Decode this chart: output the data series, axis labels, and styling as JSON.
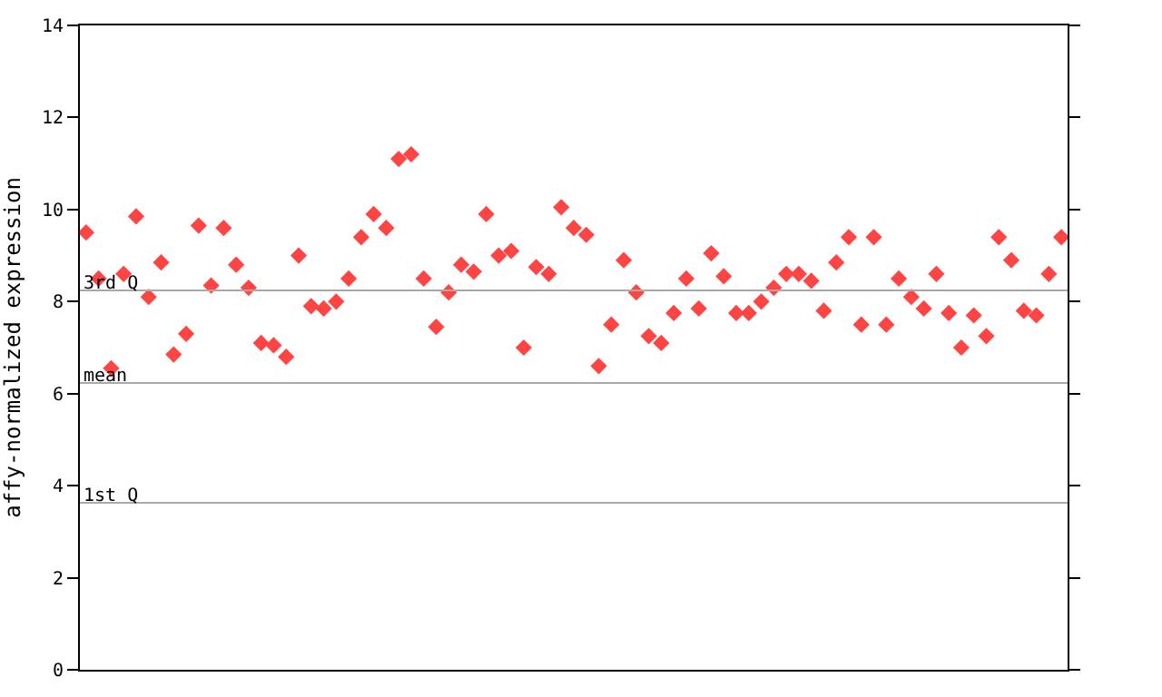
{
  "chart_data": {
    "type": "scatter",
    "ylabel": "affy-normalized expression",
    "categories": [
      null,
      null,
      null,
      null,
      null,
      null,
      null,
      null,
      null,
      null,
      null,
      null,
      null,
      null,
      null,
      null,
      null,
      null,
      null,
      null,
      null,
      null,
      null,
      null,
      null,
      null,
      null,
      null,
      null,
      null,
      null,
      null,
      null,
      null,
      null,
      null,
      null,
      null,
      null,
      null,
      null,
      null,
      null,
      null,
      null,
      null,
      null,
      null,
      null,
      null,
      null,
      null,
      null,
      null,
      null,
      null,
      null,
      null,
      null,
      null,
      null,
      null,
      null,
      null,
      null,
      null,
      null,
      null,
      null,
      null,
      null,
      null,
      null,
      null,
      null,
      null,
      null,
      null,
      null
    ],
    "series": [
      {
        "color": "#ff4444",
        "values": [
          9.5,
          8.5,
          6.55,
          8.6,
          9.85,
          8.1,
          8.85,
          6.85,
          7.3,
          9.65,
          8.35,
          9.6,
          8.8,
          8.3,
          7.1,
          7.05,
          6.8,
          9.0,
          7.9,
          7.85,
          8.0,
          8.5,
          9.4,
          9.9,
          9.6,
          11.1,
          11.2,
          8.5,
          7.45,
          8.2,
          8.8,
          8.65,
          9.9,
          9.0,
          9.1,
          7.0,
          8.75,
          8.6,
          10.05,
          9.6,
          9.45,
          6.6,
          7.5,
          8.9,
          8.2,
          7.25,
          7.1,
          7.75,
          8.5,
          7.85,
          9.05,
          8.55,
          7.75,
          7.75,
          8.0,
          8.3,
          8.6,
          8.6,
          8.45,
          7.8,
          8.85,
          9.4,
          7.5,
          9.4,
          7.5,
          8.5,
          8.1,
          7.85,
          8.6,
          7.75,
          7.0,
          7.7,
          7.25,
          9.4,
          8.9,
          7.8,
          7.7,
          8.6,
          9.4
        ]
      }
    ],
    "ylim": [
      0,
      14
    ],
    "yticks": [
      0,
      2,
      4,
      6,
      8,
      10,
      12,
      14
    ],
    "marker": "diamond",
    "ref_lines": [
      {
        "axis": "y",
        "value": 8.24,
        "label": "3rd Q",
        "color": "#aaaaaa"
      },
      {
        "axis": "y",
        "value": 6.23,
        "label": "mean",
        "color": "#aaaaaa"
      },
      {
        "axis": "y",
        "value": 3.63,
        "label": "1st Q",
        "color": "#aaaaaa"
      }
    ]
  }
}
